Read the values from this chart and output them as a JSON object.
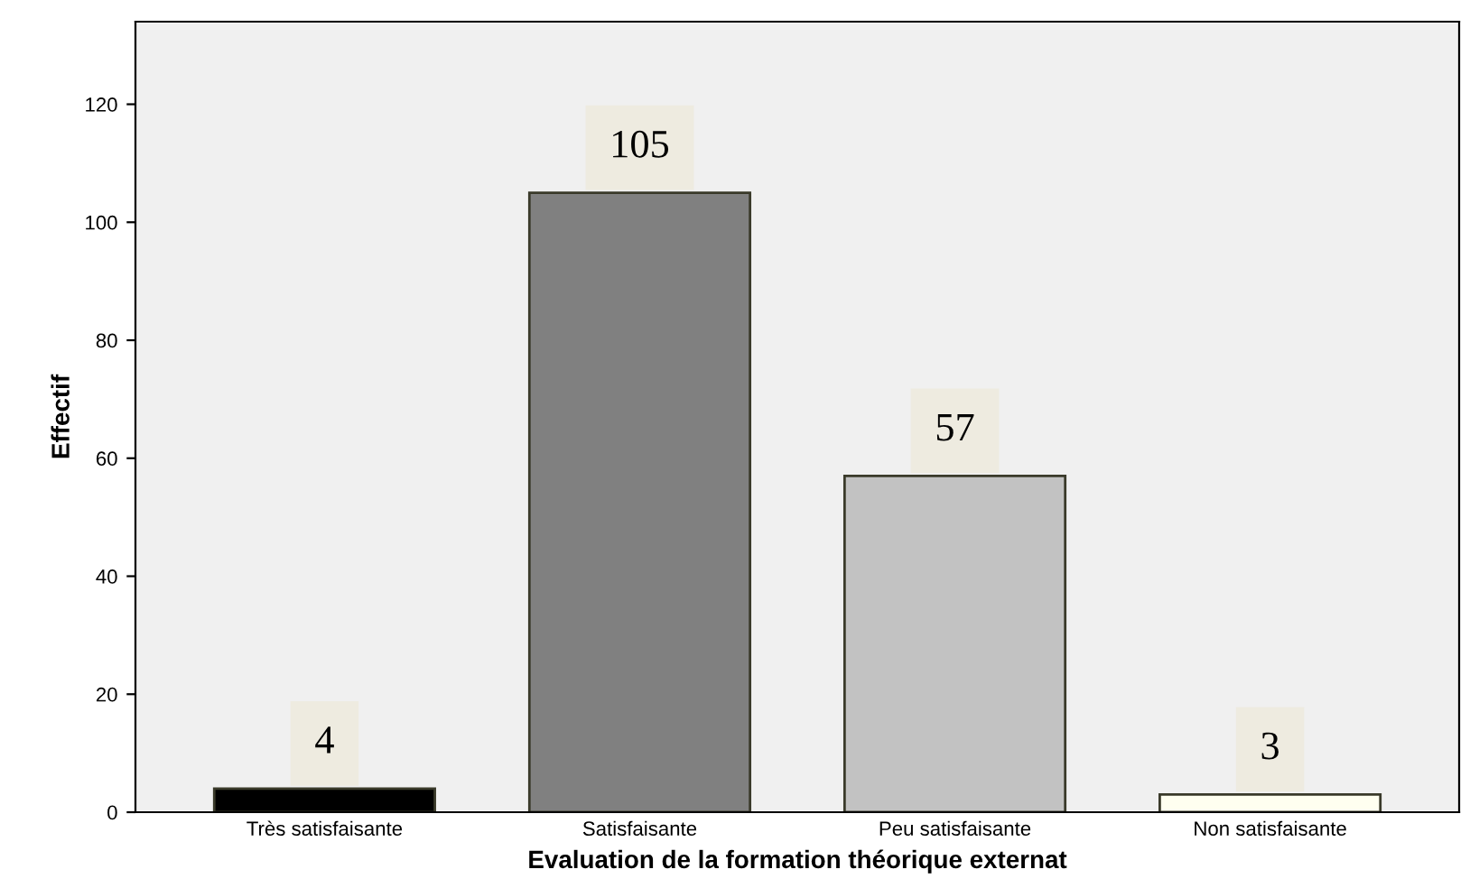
{
  "chart_data": {
    "type": "bar",
    "xlabel": "Evaluation de la formation théorique externat",
    "ylabel": "Effectif",
    "categories": [
      "Très satisfaisante",
      "Satisfaisante",
      "Peu satisfaisante",
      "Non satisfaisante"
    ],
    "values": [
      4,
      105,
      57,
      3
    ],
    "colors": [
      "#000000",
      "#808080",
      "#c2c2c2",
      "#fffff0"
    ],
    "ylim": [
      0,
      134
    ],
    "yticks": [
      0,
      20,
      40,
      60,
      80,
      100,
      120
    ],
    "data_labels": true
  }
}
